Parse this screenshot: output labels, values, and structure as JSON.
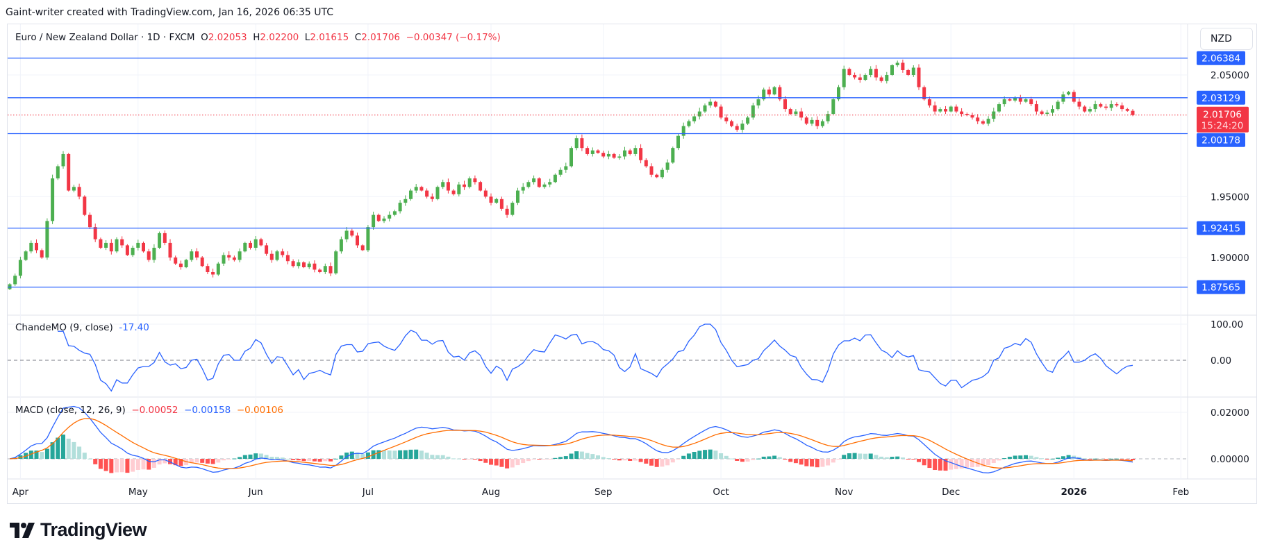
{
  "credit": "Gaint-writer created with TradingView.com, Jan 16, 2026 06:35 UTC",
  "legend": {
    "symbol": "Euro / New Zealand Dollar · 1D · FXCM",
    "o_label": "O",
    "o": "2.02053",
    "h_label": "H",
    "h": "2.02200",
    "l_label": "L",
    "l": "2.01615",
    "c_label": "C",
    "c": "2.01706",
    "change": "−0.00347 (−0.17%)"
  },
  "currency_button": "NZD",
  "price_axis": {
    "ticks": [
      "2.05000",
      "1.95000",
      "1.90000"
    ],
    "levels": [
      "2.06384",
      "2.03129",
      "2.00178",
      "1.92415",
      "1.87565"
    ],
    "last_price": "2.01706",
    "countdown": "15:24:20"
  },
  "cmo": {
    "title": "ChandeMO (9, close)",
    "value": "-17.40",
    "ticks": [
      "100.00",
      "0.00"
    ]
  },
  "macd": {
    "title": "MACD (close, 12, 26, 9)",
    "hist": "−0.00052",
    "macd": "−0.00158",
    "signal": "−0.00106",
    "ticks": [
      "0.02000",
      "0.00000"
    ]
  },
  "time_axis": [
    "Apr",
    "May",
    "Jun",
    "Jul",
    "Aug",
    "Sep",
    "Oct",
    "Nov",
    "Dec",
    "2026",
    "Feb"
  ],
  "brand": "TradingView",
  "colors": {
    "up": "#4caf50",
    "down": "#f23645",
    "level": "#2962ff",
    "cmo": "#2962ff",
    "macd": "#2962ff",
    "signal": "#ff6d00",
    "hist_up": "#26a69a",
    "hist_up_weak": "#b2dfdb",
    "hist_down": "#ff5252",
    "hist_down_weak": "#ffcdd2"
  },
  "chart_data": {
    "type": "candlestick",
    "symbol": "EURNZD",
    "interval": "1D",
    "ylim": [
      1.865,
      2.075
    ],
    "levels": [
      2.06384,
      2.03129,
      2.00178,
      1.92415,
      1.87565
    ],
    "last": {
      "open": 2.02053,
      "high": 2.022,
      "low": 2.01615,
      "close": 2.01706
    },
    "closes": [
      1.878,
      1.885,
      1.898,
      1.905,
      1.912,
      1.906,
      1.9,
      1.93,
      1.965,
      1.975,
      1.985,
      1.955,
      1.958,
      1.95,
      1.935,
      1.925,
      1.915,
      1.908,
      1.912,
      1.905,
      1.915,
      1.91,
      1.902,
      1.908,
      1.912,
      1.905,
      1.898,
      1.908,
      1.92,
      1.912,
      1.9,
      1.895,
      1.892,
      1.898,
      1.905,
      1.9,
      1.893,
      1.888,
      1.886,
      1.895,
      1.902,
      1.9,
      1.898,
      1.905,
      1.912,
      1.908,
      1.915,
      1.91,
      1.903,
      1.898,
      1.905,
      1.902,
      1.897,
      1.893,
      1.896,
      1.892,
      1.895,
      1.89,
      1.888,
      1.893,
      1.887,
      1.905,
      1.915,
      1.922,
      1.918,
      1.91,
      1.906,
      1.925,
      1.935,
      1.93,
      1.932,
      1.935,
      1.938,
      1.945,
      1.948,
      1.955,
      1.958,
      1.955,
      1.95,
      1.948,
      1.958,
      1.962,
      1.955,
      1.952,
      1.96,
      1.958,
      1.965,
      1.962,
      1.955,
      1.95,
      1.945,
      1.948,
      1.94,
      1.935,
      1.945,
      1.955,
      1.958,
      1.962,
      1.965,
      1.958,
      1.96,
      1.962,
      1.968,
      1.972,
      1.975,
      1.99,
      1.998,
      1.99,
      1.985,
      1.988,
      1.986,
      1.983,
      1.985,
      1.982,
      1.983,
      1.988,
      1.985,
      1.99,
      1.98,
      1.975,
      1.968,
      1.966,
      1.972,
      1.978,
      1.99,
      2.0,
      2.008,
      2.012,
      2.016,
      2.02,
      2.025,
      2.028,
      2.024,
      2.015,
      2.012,
      2.008,
      2.005,
      2.01,
      2.015,
      2.025,
      2.03,
      2.038,
      2.034,
      2.04,
      2.03,
      2.022,
      2.018,
      2.02,
      2.015,
      2.01,
      2.013,
      2.008,
      2.012,
      2.018,
      2.03,
      2.04,
      2.055,
      2.05,
      2.048,
      2.046,
      2.05,
      2.055,
      2.048,
      2.045,
      2.05,
      2.058,
      2.06,
      2.054,
      2.05,
      2.056,
      2.04,
      2.03,
      2.025,
      2.02,
      2.022,
      2.02,
      2.024,
      2.02,
      2.018,
      2.017,
      2.015,
      2.012,
      2.01,
      2.014,
      2.02,
      2.026,
      2.03,
      2.029,
      2.031,
      2.028,
      2.03,
      2.026,
      2.02,
      2.018,
      2.019,
      2.022,
      2.028,
      2.034,
      2.036,
      2.028,
      2.024,
      2.02,
      2.022,
      2.026,
      2.024,
      2.023,
      2.026,
      2.025,
      2.022,
      2.0205,
      2.01706
    ],
    "cmo_period": 9,
    "macd_params": [
      12,
      26,
      9
    ],
    "cmo_ylim": [
      -100,
      100
    ],
    "macd_ylim": [
      -0.0075,
      0.022
    ],
    "grid": true
  }
}
